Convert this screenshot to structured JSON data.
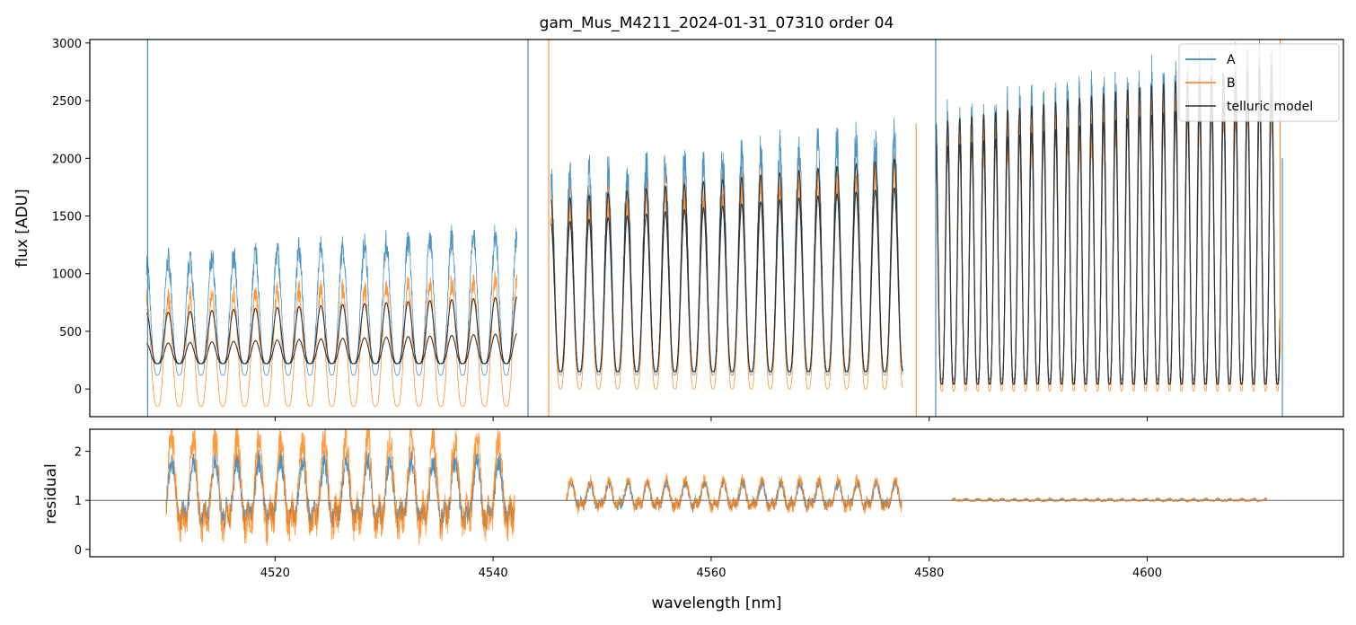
{
  "figure_title": "gam_Mus_M4211_2024-01-31_07310  order 04",
  "colors": {
    "A": "#1f77b4",
    "B": "#ff7f0e",
    "model": "#333333",
    "refline": "#666666"
  },
  "chart_data": [
    {
      "name": "flux-panel",
      "type": "line",
      "title": "gam_Mus_M4211_2024-01-31_07310  order 04",
      "xlabel": "",
      "ylabel": "flux [ADU]",
      "xlim": [
        4503,
        4618
      ],
      "ylim": [
        -240,
        3030
      ],
      "yticks": [
        0,
        500,
        1000,
        1500,
        2000,
        2500,
        3000
      ],
      "xticks": [
        4520,
        4540,
        4560,
        4580,
        4600
      ],
      "legend": {
        "position": "top-right",
        "entries": [
          "A",
          "B",
          "telluric model"
        ]
      },
      "segments": [
        {
          "x0": 4508.2,
          "x1": 4542.2,
          "peakA": 1350,
          "peakB": 950,
          "minA": 120,
          "minB": -150,
          "modelA": 800,
          "modelB": 480,
          "modelMin": 220,
          "period": 2.0
        },
        {
          "x0": 4545.3,
          "x1": 4577.6,
          "peakA": 2200,
          "peakB": 1900,
          "minA": 120,
          "minB": 0,
          "modelA": 2000,
          "modelB": 1750,
          "modelMin": 150,
          "period": 1.75
        },
        {
          "x0": 4580.6,
          "x1": 4612.2,
          "peakA": 2850,
          "peakB": 2550,
          "minA": 80,
          "minB": -20,
          "modelA": 2820,
          "modelB": 2550,
          "modelMin": 40,
          "period": 1.1
        }
      ],
      "spikes": [
        {
          "x": 4508.3,
          "series": "A",
          "ymin": -240,
          "ymax": 3030
        },
        {
          "x": 4543.2,
          "series": "A",
          "ymin": -240,
          "ymax": 3030
        },
        {
          "x": 4545.1,
          "series": "B",
          "ymin": -240,
          "ymax": 3030
        },
        {
          "x": 4578.8,
          "series": "B",
          "ymin": -240,
          "ymax": 2300
        },
        {
          "x": 4580.6,
          "series": "A",
          "ymin": -240,
          "ymax": 3030
        },
        {
          "x": 4612.2,
          "series": "B",
          "ymin": 300,
          "ymax": 3030
        },
        {
          "x": 4612.4,
          "series": "A",
          "ymin": -240,
          "ymax": 2000
        }
      ]
    },
    {
      "name": "residual-panel",
      "type": "line",
      "xlabel": "wavelength [nm]",
      "ylabel": "residual",
      "xlim": [
        4503,
        4618
      ],
      "ylim": [
        -0.15,
        2.45
      ],
      "yticks": [
        0,
        1,
        2
      ],
      "xticks": [
        4520,
        4540,
        4560,
        4580,
        4600
      ],
      "reference_line": 1,
      "segments": [
        {
          "x0": 4510.0,
          "x1": 4542.0,
          "ampA": 0.9,
          "ampB": 1.3,
          "center": 0.9,
          "period": 2.0
        },
        {
          "x0": 4546.7,
          "x1": 4577.5,
          "ampA": 0.35,
          "ampB": 0.4,
          "center": 1.0,
          "period": 1.75
        },
        {
          "x0": 4582.0,
          "x1": 4611.0,
          "ampA": 0.03,
          "ampB": 0.03,
          "center": 1.0,
          "period": 1.1
        }
      ]
    }
  ]
}
